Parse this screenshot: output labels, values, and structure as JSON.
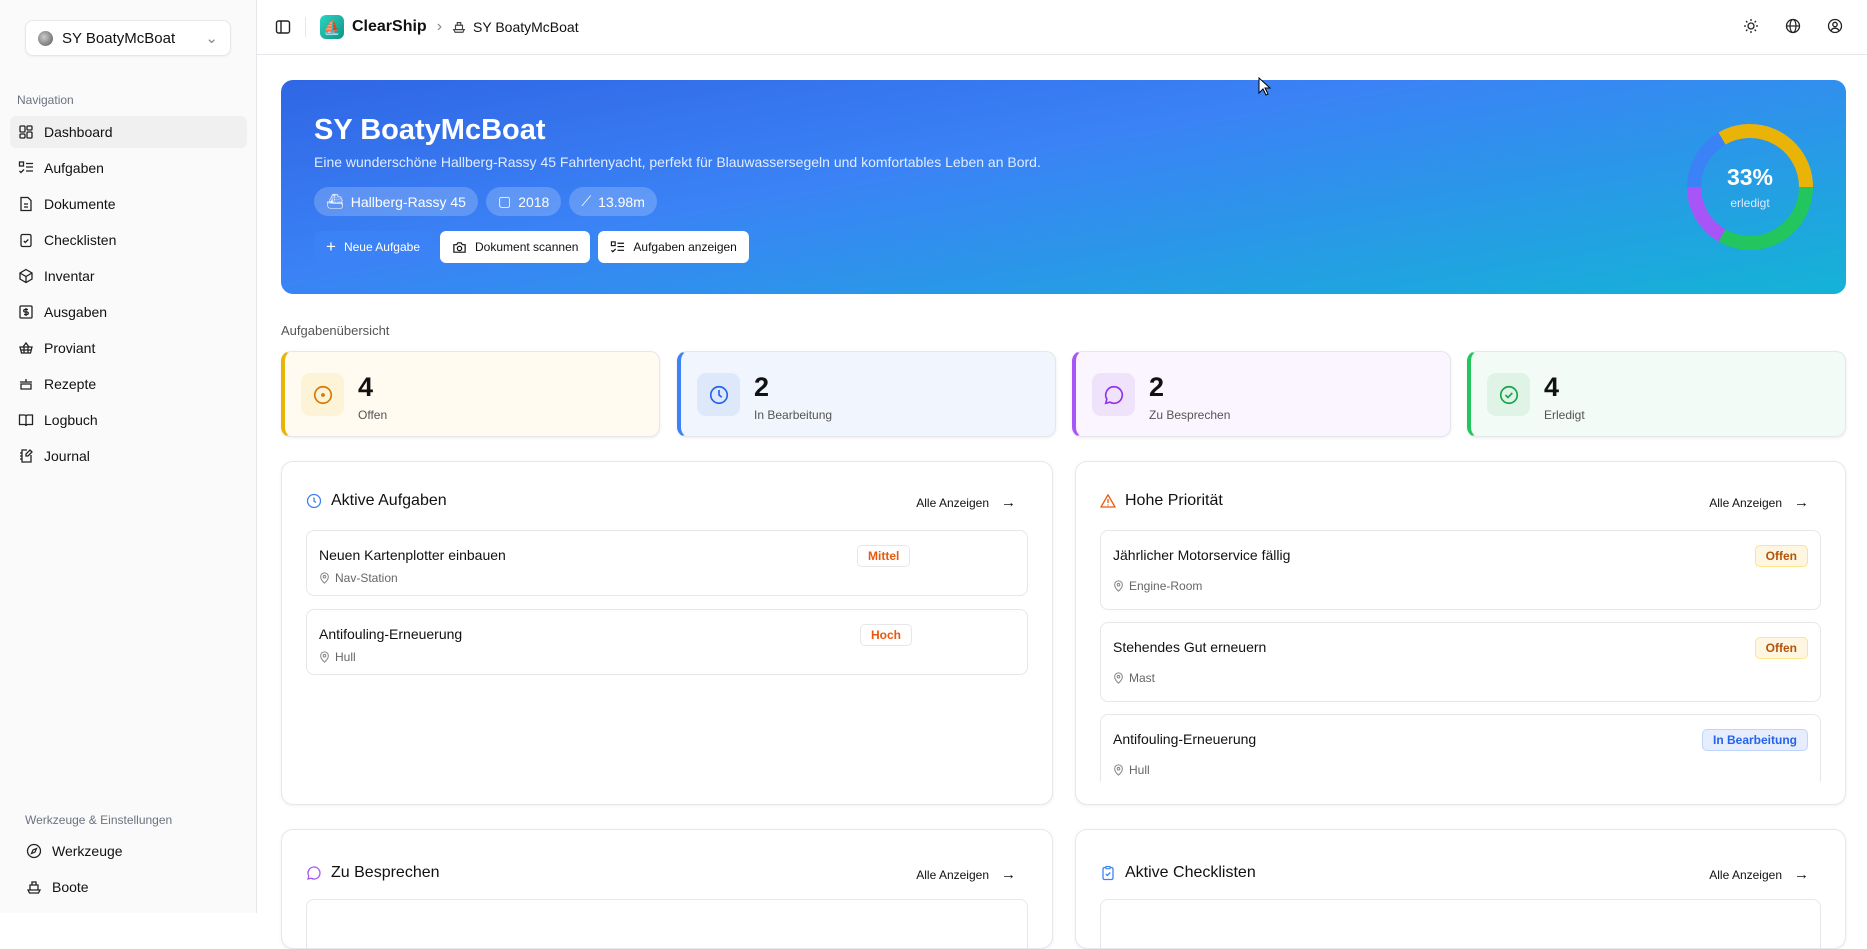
{
  "sidebar": {
    "boat_selector": "SY BoatyMcBoat",
    "nav_label": "Navigation",
    "items": [
      {
        "label": "Dashboard",
        "icon": "dashboard-icon"
      },
      {
        "label": "Aufgaben",
        "icon": "tasks-icon"
      },
      {
        "label": "Dokumente",
        "icon": "document-icon"
      },
      {
        "label": "Checklisten",
        "icon": "clipboard-icon"
      },
      {
        "label": "Inventar",
        "icon": "package-icon"
      },
      {
        "label": "Ausgaben",
        "icon": "dollar-icon"
      },
      {
        "label": "Proviant",
        "icon": "basket-icon"
      },
      {
        "label": "Rezepte",
        "icon": "cooking-pot-icon"
      },
      {
        "label": "Logbuch",
        "icon": "book-icon"
      },
      {
        "label": "Journal",
        "icon": "notebook-pen-icon"
      }
    ],
    "tools_label": "Werkzeuge & Einstellungen",
    "tools": [
      {
        "label": "Werkzeuge",
        "icon": "compass-icon"
      },
      {
        "label": "Boote",
        "icon": "ship-icon"
      }
    ]
  },
  "topbar": {
    "brand": "ClearShip",
    "breadcrumb": "SY BoatyMcBoat"
  },
  "hero": {
    "title": "SY BoatyMcBoat",
    "description": "Eine wunderschöne Hallberg-Rassy 45 Fahrtenyacht, perfekt für Blauwassersegeln und komfortables Leben an Bord.",
    "chips": [
      "Hallberg-Rassy 45",
      "2018",
      "13.98m"
    ],
    "buttons": {
      "new_task": "Neue Aufgabe",
      "scan": "Dokument scannen",
      "show_tasks": "Aufgaben anzeigen"
    },
    "progress": {
      "percent": "33%",
      "label": "erledigt"
    }
  },
  "overview": {
    "title": "Aufgabenübersicht",
    "stats": [
      {
        "count": "4",
        "label": "Offen",
        "color": "#eab308",
        "bg": "#fffbf0",
        "icon_bg": "#fdf3d6",
        "icon_color": "#d97706"
      },
      {
        "count": "2",
        "label": "In Bearbeitung",
        "color": "#3b82f6",
        "bg": "#f1f5fe",
        "icon_bg": "#dde8fb",
        "icon_color": "#2563eb"
      },
      {
        "count": "2",
        "label": "Zu Besprechen",
        "color": "#a855f7",
        "bg": "#faf5fe",
        "icon_bg": "#efe3fb",
        "icon_color": "#9333ea"
      },
      {
        "count": "4",
        "label": "Erledigt",
        "color": "#22c55e",
        "bg": "#f2fbf5",
        "icon_bg": "#dff3e6",
        "icon_color": "#16a34a"
      }
    ]
  },
  "panels": {
    "active": {
      "title": "Aktive Aufgaben",
      "link": "Alle Anzeigen",
      "items": [
        {
          "title": "Neuen Kartenplotter einbauen",
          "location": "Nav-Station",
          "badge": "Mittel"
        },
        {
          "title": "Antifouling-Erneuerung",
          "location": "Hull",
          "badge": "Hoch"
        }
      ]
    },
    "high": {
      "title": "Hohe Priorität",
      "link": "Alle Anzeigen",
      "items": [
        {
          "title": "Jährlicher Motorservice fällig",
          "location": "Engine-Room",
          "badge": "Offen"
        },
        {
          "title": "Stehendes Gut erneuern",
          "location": "Mast",
          "badge": "Offen"
        },
        {
          "title": "Antifouling-Erneuerung",
          "location": "Hull",
          "badge": "In Bearbeitung"
        }
      ]
    },
    "discuss": {
      "title": "Zu Besprechen",
      "link": "Alle Anzeigen"
    },
    "checklists": {
      "title": "Aktive Checklisten",
      "link": "Alle Anzeigen"
    }
  }
}
